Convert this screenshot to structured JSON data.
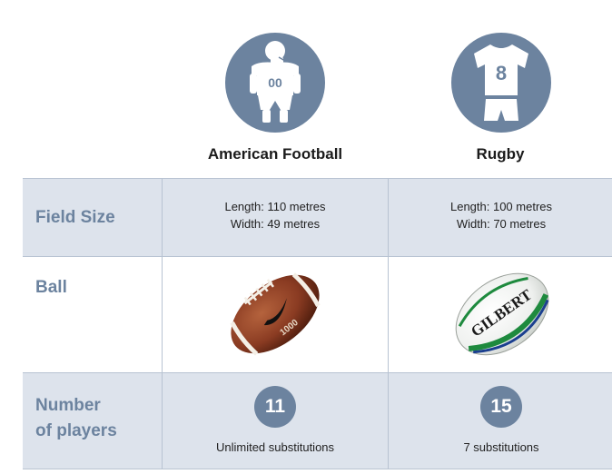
{
  "sports": [
    {
      "name": "American Football",
      "jersey_number": "00",
      "icon": "football-player-icon"
    },
    {
      "name": "Rugby",
      "jersey_number": "8",
      "icon": "rugby-jersey-icon"
    }
  ],
  "rows": {
    "field_size": {
      "label": "Field Size",
      "values": [
        {
          "length": "Length: 110 metres",
          "width": "Width: 49 metres"
        },
        {
          "length": "Length: 100 metres",
          "width": "Width: 70 metres"
        }
      ]
    },
    "ball": {
      "label": "Ball",
      "values": [
        {
          "logo_text": "1000"
        },
        {
          "logo_text": "GILBERT"
        }
      ]
    },
    "players": {
      "label_line1": "Number",
      "label_line2": "of players",
      "values": [
        {
          "count": "11",
          "note": "Unlimited substitutions"
        },
        {
          "count": "15",
          "note": "7 substitutions"
        }
      ]
    }
  },
  "colors": {
    "accent": "#6c839f",
    "row_shade": "#dde3ec",
    "football_brown": "#8a3b22",
    "rugby_green": "#1e8a3e"
  }
}
